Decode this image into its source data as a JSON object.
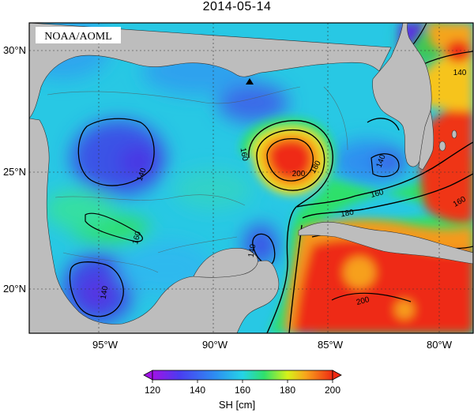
{
  "title": "2014-05-14",
  "credit": "NOAA/AOML",
  "lat_labels": [
    "30°N",
    "25°N",
    "20°N"
  ],
  "lon_labels": [
    "95°W",
    "90°W",
    "85°W",
    "80°W"
  ],
  "contour_labels": [
    "140",
    "140",
    "160",
    "140",
    "160",
    "200",
    "180",
    "160",
    "140",
    "180",
    "160",
    "200",
    "140"
  ],
  "colorbar": {
    "ticks": [
      "120",
      "140",
      "160",
      "180",
      "200"
    ],
    "units": "SH [cm]"
  },
  "colors": {
    "land": "#bdbdbd",
    "low": "#8a2be2",
    "deep_blue": "#3b4be8",
    "blue": "#2f7df0",
    "cyan": "#22c6e8",
    "green": "#2fe06b",
    "yellow": "#f3f21a",
    "orange": "#f69a1c",
    "red": "#ee2b14"
  },
  "marker": "station-triangle"
}
